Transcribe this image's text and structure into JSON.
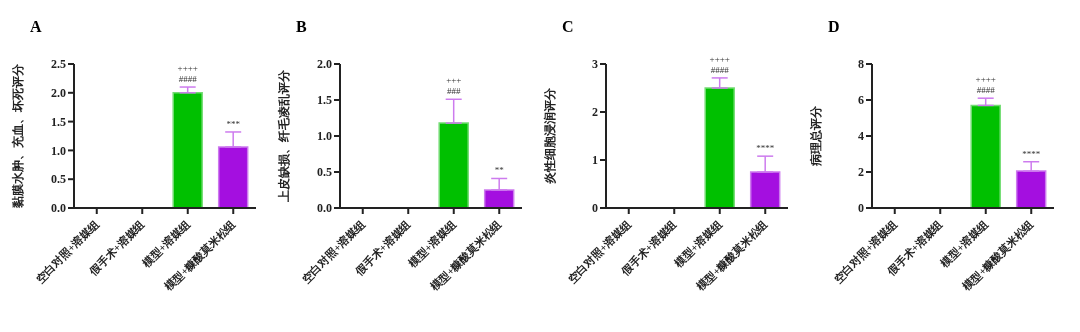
{
  "chart_data": [
    {
      "type": "bar",
      "title": "A",
      "ylabel": "黏膜水肿、充血、坏死评分",
      "categories": [
        "空白对照+溶媒组",
        "假手术+溶媒组",
        "模型+溶媒组",
        "模型+糠酸莫米松组"
      ],
      "values": [
        0,
        0,
        2.0,
        1.06
      ],
      "colors": [
        "#00c000",
        "#00c000",
        "#00c000",
        "#a40fe0"
      ],
      "errors": [
        null,
        null,
        [
          2.0,
          2.1
        ],
        [
          1.06,
          1.32
        ]
      ],
      "ylim": [
        0,
        2.5
      ],
      "yticks": [
        {
          "value": 0,
          "label": "0.0"
        },
        {
          "value": 0.5,
          "label": "0.5"
        },
        {
          "value": 1,
          "label": "1.0"
        },
        {
          "value": 1.5,
          "label": "1.5"
        },
        {
          "value": 2,
          "label": "2.0"
        },
        {
          "value": 2.5,
          "label": "2.5"
        }
      ],
      "grid": false,
      "annotations": [
        {
          "text": "####",
          "x": "模型+溶媒组",
          "y": 2.1
        },
        {
          "text": "++++",
          "x": "模型+溶媒组",
          "y": 2.1
        },
        {
          "text": "***",
          "x": "模型+糠酸莫米松组",
          "y": 1.32
        }
      ]
    },
    {
      "type": "bar",
      "title": "B",
      "ylabel": "上皮缺损、纤毛凌乱评分",
      "categories": [
        "空白对照+溶媒组",
        "假手术+溶媒组",
        "模型+溶媒组",
        "模型+糠酸莫米松组"
      ],
      "values": [
        0,
        0,
        1.18,
        0.25
      ],
      "colors": [
        "#00c000",
        "#00c000",
        "#00c000",
        "#a40fe0"
      ],
      "errors": [
        null,
        null,
        [
          1.18,
          1.51
        ],
        [
          0.25,
          0.41
        ]
      ],
      "ylim": [
        0,
        2.0
      ],
      "yticks": [
        {
          "value": 0,
          "label": "0.0"
        },
        {
          "value": 0.5,
          "label": "0.5"
        },
        {
          "value": 1,
          "label": "1.0"
        },
        {
          "value": 1.5,
          "label": "1.5"
        },
        {
          "value": 2,
          "label": "2.0"
        }
      ],
      "grid": false,
      "annotations": [
        {
          "text": "###",
          "x": "模型+溶媒组",
          "y": 1.51
        },
        {
          "text": "+++",
          "x": "模型+溶媒组",
          "y": 1.51
        },
        {
          "text": "**",
          "x": "模型+糠酸莫米松组",
          "y": 0.41
        }
      ]
    },
    {
      "type": "bar",
      "title": "C",
      "ylabel": "炎性细胞浸润评分",
      "categories": [
        "空白对照+溶媒组",
        "假手术+溶媒组",
        "模型+溶媒组",
        "模型+糠酸莫米松组"
      ],
      "values": [
        0,
        0,
        2.5,
        0.75
      ],
      "colors": [
        "#00c000",
        "#00c000",
        "#00c000",
        "#a40fe0"
      ],
      "errors": [
        null,
        null,
        [
          2.5,
          2.71
        ],
        [
          0.75,
          1.08
        ]
      ],
      "ylim": [
        0,
        3
      ],
      "yticks": [
        0,
        1,
        2,
        3
      ],
      "grid": false,
      "annotations": [
        {
          "text": "####",
          "x": "模型+溶媒组",
          "y": 2.71
        },
        {
          "text": "++++",
          "x": "模型+溶媒组",
          "y": 2.71
        },
        {
          "text": "****",
          "x": "模型+糠酸莫米松组",
          "y": 1.08
        }
      ]
    },
    {
      "type": "bar",
      "title": "D",
      "ylabel": "病理总评分",
      "categories": [
        "空白对照+溶媒组",
        "假手术+溶媒组",
        "模型+溶媒组",
        "模型+糠酸莫米松组"
      ],
      "values": [
        0,
        0,
        5.7,
        2.05
      ],
      "colors": [
        "#00c000",
        "#00c000",
        "#00c000",
        "#a40fe0"
      ],
      "errors": [
        null,
        null,
        [
          5.7,
          6.1
        ],
        [
          2.05,
          2.57
        ]
      ],
      "ylim": [
        0,
        8
      ],
      "yticks": [
        0,
        2,
        4,
        6,
        8
      ],
      "grid": false,
      "annotations": [
        {
          "text": "####",
          "x": "模型+溶媒组",
          "y": 6.1
        },
        {
          "text": "++++",
          "x": "模型+溶媒组",
          "y": 6.1
        },
        {
          "text": "****",
          "x": "模型+糠酸莫米松组",
          "y": 2.57
        }
      ]
    }
  ]
}
